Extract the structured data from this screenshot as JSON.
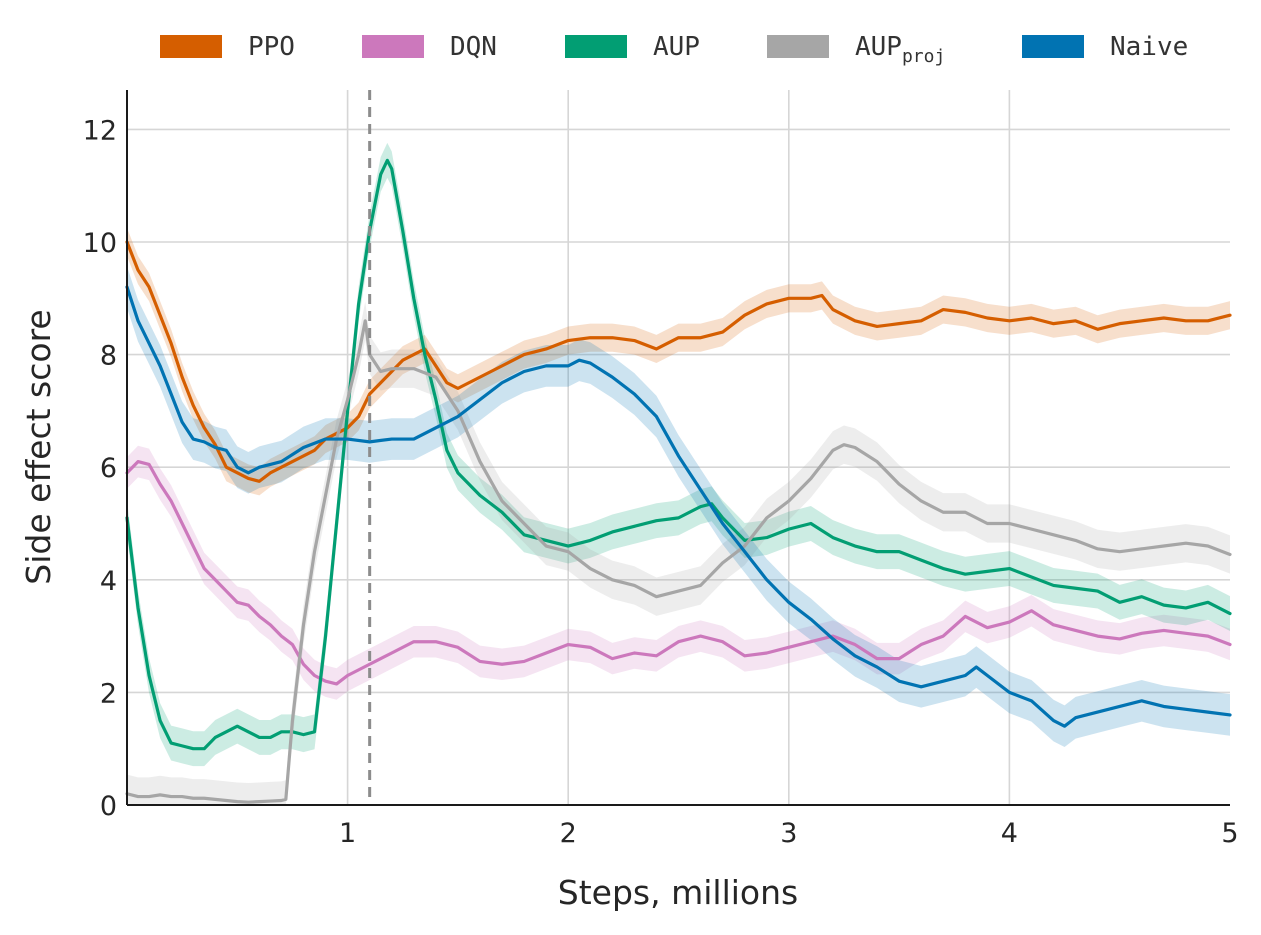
{
  "chart_data": {
    "type": "line",
    "xlabel": "Steps, millions",
    "ylabel": "Side effect score",
    "xlim": [
      0,
      5
    ],
    "ylim": [
      0,
      12.7
    ],
    "xticks": [
      1,
      2,
      3,
      4,
      5
    ],
    "yticks": [
      0,
      2,
      4,
      6,
      8,
      10,
      12
    ],
    "grid": true,
    "legend_position": "top",
    "vline": {
      "x": 1.1,
      "style": "dashed",
      "color": "#8c8c8c"
    },
    "series": [
      {
        "name": "PPO",
        "color": "#d55e00",
        "x": [
          0,
          0.05,
          0.1,
          0.15,
          0.2,
          0.25,
          0.3,
          0.35,
          0.4,
          0.45,
          0.5,
          0.55,
          0.6,
          0.65,
          0.7,
          0.75,
          0.8,
          0.85,
          0.9,
          0.95,
          1.0,
          1.05,
          1.1,
          1.15,
          1.2,
          1.25,
          1.3,
          1.35,
          1.4,
          1.45,
          1.5,
          1.55,
          1.6,
          1.7,
          1.8,
          1.9,
          2.0,
          2.1,
          2.2,
          2.3,
          2.4,
          2.5,
          2.6,
          2.7,
          2.8,
          2.9,
          3.0,
          3.1,
          3.15,
          3.2,
          3.3,
          3.4,
          3.5,
          3.6,
          3.7,
          3.8,
          3.9,
          4.0,
          4.1,
          4.2,
          4.3,
          4.4,
          4.5,
          4.6,
          4.7,
          4.8,
          4.9,
          5.0
        ],
        "y": [
          10.0,
          9.5,
          9.2,
          8.7,
          8.2,
          7.6,
          7.1,
          6.7,
          6.4,
          6.0,
          5.9,
          5.8,
          5.75,
          5.9,
          6.0,
          6.1,
          6.2,
          6.3,
          6.5,
          6.6,
          6.7,
          6.9,
          7.3,
          7.5,
          7.7,
          7.9,
          8.0,
          8.1,
          7.8,
          7.5,
          7.4,
          7.5,
          7.6,
          7.8,
          8.0,
          8.1,
          8.25,
          8.3,
          8.3,
          8.25,
          8.1,
          8.3,
          8.3,
          8.4,
          8.7,
          8.9,
          9.0,
          9.0,
          9.05,
          8.8,
          8.6,
          8.5,
          8.55,
          8.6,
          8.8,
          8.75,
          8.65,
          8.6,
          8.65,
          8.55,
          8.6,
          8.45,
          8.55,
          8.6,
          8.65,
          8.6,
          8.6,
          8.7
        ]
      },
      {
        "name": "DQN",
        "color": "#cc78bc",
        "x": [
          0,
          0.05,
          0.1,
          0.15,
          0.2,
          0.25,
          0.3,
          0.35,
          0.4,
          0.45,
          0.5,
          0.55,
          0.6,
          0.65,
          0.7,
          0.75,
          0.8,
          0.85,
          0.9,
          0.95,
          1.0,
          1.05,
          1.1,
          1.2,
          1.3,
          1.4,
          1.5,
          1.6,
          1.7,
          1.8,
          1.9,
          2.0,
          2.1,
          2.2,
          2.3,
          2.4,
          2.5,
          2.6,
          2.7,
          2.8,
          2.9,
          3.0,
          3.1,
          3.2,
          3.3,
          3.4,
          3.5,
          3.6,
          3.7,
          3.8,
          3.9,
          4.0,
          4.1,
          4.2,
          4.3,
          4.4,
          4.5,
          4.6,
          4.7,
          4.8,
          4.9,
          5.0
        ],
        "y": [
          5.9,
          6.1,
          6.05,
          5.7,
          5.4,
          5.0,
          4.6,
          4.2,
          4.0,
          3.8,
          3.6,
          3.55,
          3.35,
          3.2,
          3.0,
          2.85,
          2.5,
          2.3,
          2.2,
          2.15,
          2.3,
          2.4,
          2.5,
          2.7,
          2.9,
          2.9,
          2.8,
          2.55,
          2.5,
          2.55,
          2.7,
          2.85,
          2.8,
          2.6,
          2.7,
          2.65,
          2.9,
          3.0,
          2.9,
          2.65,
          2.7,
          2.8,
          2.9,
          3.0,
          2.85,
          2.6,
          2.6,
          2.85,
          3.0,
          3.35,
          3.15,
          3.25,
          3.45,
          3.2,
          3.1,
          3.0,
          2.95,
          3.05,
          3.1,
          3.05,
          3.0,
          2.85
        ]
      },
      {
        "name": "AUP",
        "color": "#029e73",
        "x": [
          0,
          0.05,
          0.1,
          0.15,
          0.2,
          0.25,
          0.3,
          0.35,
          0.4,
          0.45,
          0.5,
          0.55,
          0.6,
          0.65,
          0.7,
          0.75,
          0.8,
          0.85,
          0.9,
          0.95,
          1.0,
          1.05,
          1.1,
          1.15,
          1.18,
          1.2,
          1.25,
          1.3,
          1.35,
          1.4,
          1.45,
          1.5,
          1.6,
          1.7,
          1.8,
          1.9,
          2.0,
          2.1,
          2.2,
          2.3,
          2.4,
          2.5,
          2.6,
          2.65,
          2.7,
          2.8,
          2.9,
          3.0,
          3.1,
          3.2,
          3.3,
          3.4,
          3.5,
          3.6,
          3.7,
          3.8,
          3.9,
          4.0,
          4.1,
          4.2,
          4.3,
          4.4,
          4.5,
          4.6,
          4.7,
          4.8,
          4.9,
          5.0
        ],
        "y": [
          5.1,
          3.5,
          2.3,
          1.5,
          1.1,
          1.05,
          1.0,
          1.0,
          1.2,
          1.3,
          1.4,
          1.3,
          1.2,
          1.2,
          1.3,
          1.3,
          1.25,
          1.3,
          3.0,
          5.0,
          7.0,
          8.9,
          10.2,
          11.2,
          11.45,
          11.3,
          10.2,
          9.0,
          8.0,
          7.2,
          6.3,
          5.9,
          5.5,
          5.2,
          4.8,
          4.7,
          4.6,
          4.7,
          4.85,
          4.95,
          5.05,
          5.1,
          5.3,
          5.35,
          5.1,
          4.7,
          4.75,
          4.9,
          5.0,
          4.75,
          4.6,
          4.5,
          4.5,
          4.35,
          4.2,
          4.1,
          4.15,
          4.2,
          4.05,
          3.9,
          3.85,
          3.8,
          3.6,
          3.7,
          3.55,
          3.5,
          3.6,
          3.4
        ]
      },
      {
        "name": "AUP_proj",
        "color": "#a6a6a6",
        "x": [
          0,
          0.05,
          0.1,
          0.15,
          0.2,
          0.25,
          0.3,
          0.35,
          0.4,
          0.45,
          0.5,
          0.55,
          0.6,
          0.65,
          0.7,
          0.72,
          0.75,
          0.8,
          0.85,
          0.9,
          0.95,
          1.0,
          1.05,
          1.08,
          1.1,
          1.15,
          1.2,
          1.3,
          1.4,
          1.5,
          1.6,
          1.7,
          1.8,
          1.9,
          2.0,
          2.1,
          2.2,
          2.3,
          2.4,
          2.5,
          2.6,
          2.7,
          2.8,
          2.9,
          3.0,
          3.1,
          3.2,
          3.25,
          3.3,
          3.4,
          3.5,
          3.6,
          3.7,
          3.8,
          3.9,
          4.0,
          4.1,
          4.2,
          4.3,
          4.4,
          4.5,
          4.6,
          4.7,
          4.8,
          4.9,
          5.0
        ],
        "y": [
          0.2,
          0.15,
          0.15,
          0.18,
          0.15,
          0.15,
          0.12,
          0.12,
          0.1,
          0.08,
          0.06,
          0.05,
          0.06,
          0.07,
          0.08,
          0.1,
          1.5,
          3.2,
          4.5,
          5.5,
          6.5,
          7.2,
          8.0,
          8.6,
          8.0,
          7.7,
          7.75,
          7.75,
          7.6,
          7.0,
          6.1,
          5.4,
          5.0,
          4.6,
          4.5,
          4.2,
          4.0,
          3.9,
          3.7,
          3.8,
          3.9,
          4.3,
          4.6,
          5.1,
          5.4,
          5.8,
          6.3,
          6.4,
          6.35,
          6.1,
          5.7,
          5.4,
          5.2,
          5.2,
          5.0,
          5.0,
          4.9,
          4.8,
          4.7,
          4.55,
          4.5,
          4.55,
          4.6,
          4.65,
          4.6,
          4.45
        ]
      },
      {
        "name": "Naive",
        "color": "#0173b2",
        "x": [
          0,
          0.05,
          0.1,
          0.15,
          0.2,
          0.25,
          0.3,
          0.35,
          0.4,
          0.45,
          0.5,
          0.55,
          0.6,
          0.65,
          0.7,
          0.8,
          0.9,
          1.0,
          1.1,
          1.2,
          1.3,
          1.4,
          1.5,
          1.6,
          1.7,
          1.8,
          1.9,
          2.0,
          2.05,
          2.1,
          2.2,
          2.3,
          2.4,
          2.5,
          2.6,
          2.7,
          2.8,
          2.9,
          3.0,
          3.1,
          3.2,
          3.3,
          3.4,
          3.5,
          3.6,
          3.7,
          3.8,
          3.85,
          3.9,
          4.0,
          4.1,
          4.2,
          4.25,
          4.3,
          4.4,
          4.5,
          4.6,
          4.7,
          4.8,
          4.9,
          5.0
        ],
        "y": [
          9.2,
          8.6,
          8.2,
          7.8,
          7.3,
          6.8,
          6.5,
          6.45,
          6.35,
          6.3,
          6.0,
          5.9,
          6.0,
          6.05,
          6.1,
          6.35,
          6.5,
          6.5,
          6.45,
          6.5,
          6.5,
          6.7,
          6.9,
          7.2,
          7.5,
          7.7,
          7.8,
          7.8,
          7.9,
          7.85,
          7.6,
          7.3,
          6.9,
          6.2,
          5.6,
          5.0,
          4.5,
          4.0,
          3.6,
          3.3,
          2.95,
          2.65,
          2.45,
          2.2,
          2.1,
          2.2,
          2.3,
          2.45,
          2.3,
          2.0,
          1.85,
          1.5,
          1.4,
          1.55,
          1.65,
          1.75,
          1.85,
          1.75,
          1.7,
          1.65,
          1.6
        ]
      }
    ]
  },
  "legend": [
    {
      "label": "PPO",
      "sub": "",
      "color": "#d55e00"
    },
    {
      "label": "DQN",
      "sub": "",
      "color": "#cc78bc"
    },
    {
      "label": "AUP",
      "sub": "",
      "color": "#029e73"
    },
    {
      "label": "AUP",
      "sub": "proj",
      "color": "#a6a6a6"
    },
    {
      "label": "Naive",
      "sub": "",
      "color": "#0173b2"
    }
  ]
}
